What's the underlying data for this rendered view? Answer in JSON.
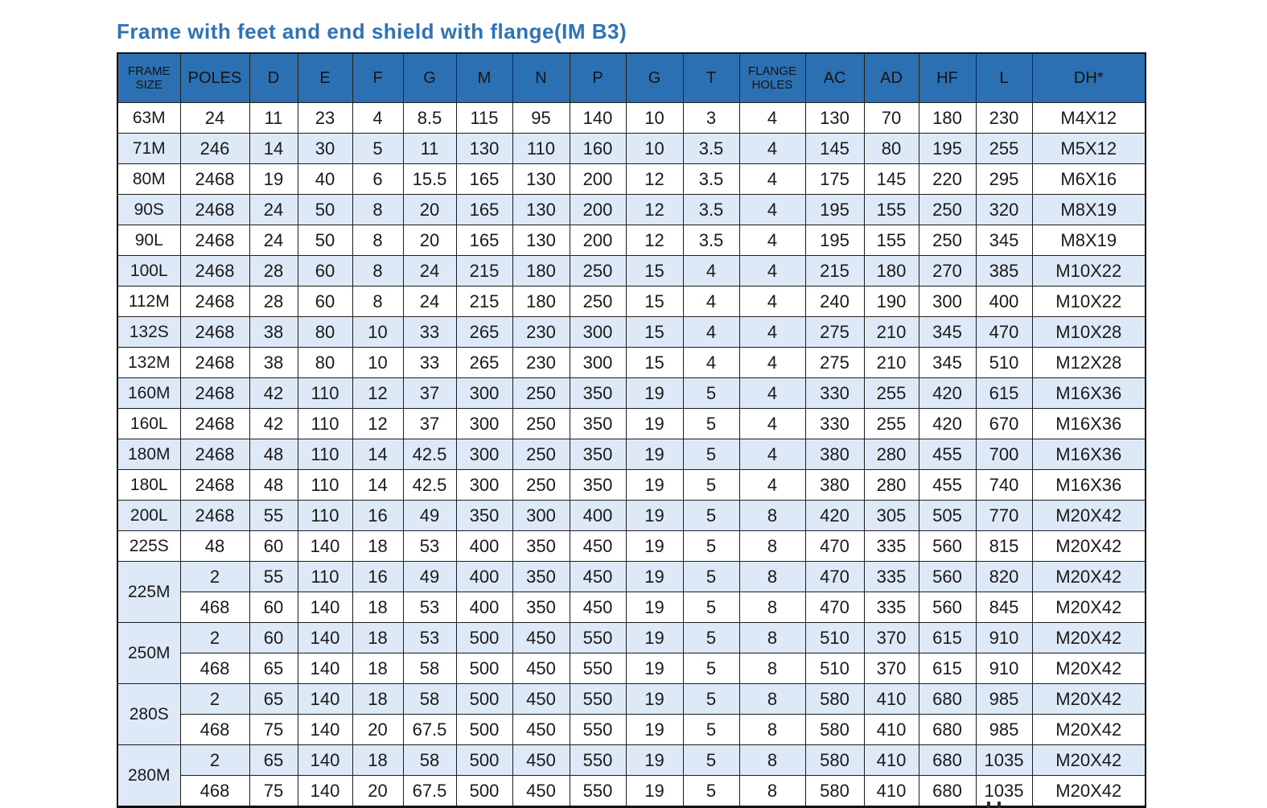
{
  "title": "Frame with feet and end shield with flange(IM B3)",
  "table": {
    "columns": [
      {
        "label": "FRAME SIZE",
        "key": "frame-size"
      },
      {
        "label": "POLES",
        "key": "poles"
      },
      {
        "label": "D",
        "key": "d"
      },
      {
        "label": "E",
        "key": "e"
      },
      {
        "label": "F",
        "key": "f"
      },
      {
        "label": "G",
        "key": "g"
      },
      {
        "label": "M",
        "key": "m"
      },
      {
        "label": "N",
        "key": "n"
      },
      {
        "label": "P",
        "key": "p"
      },
      {
        "label": "G",
        "key": "g2"
      },
      {
        "label": "T",
        "key": "t"
      },
      {
        "label": "FLANGE HOLES",
        "key": "flange-holes"
      },
      {
        "label": "AC",
        "key": "ac"
      },
      {
        "label": "AD",
        "key": "ad"
      },
      {
        "label": "HF",
        "key": "hf"
      },
      {
        "label": "L",
        "key": "l"
      },
      {
        "label": "DH*",
        "key": "dh"
      }
    ],
    "rows": [
      {
        "frame": "63M",
        "rowspan": 1,
        "frame_shade": false,
        "shade": false,
        "cells": [
          "24",
          "11",
          "23",
          "4",
          "8.5",
          "115",
          "95",
          "140",
          "10",
          "3",
          "4",
          "130",
          "70",
          "180",
          "230",
          "M4X12"
        ]
      },
      {
        "frame": "71M",
        "rowspan": 1,
        "frame_shade": true,
        "shade": true,
        "cells": [
          "246",
          "14",
          "30",
          "5",
          "11",
          "130",
          "110",
          "160",
          "10",
          "3.5",
          "4",
          "145",
          "80",
          "195",
          "255",
          "M5X12"
        ]
      },
      {
        "frame": "80M",
        "rowspan": 1,
        "frame_shade": false,
        "shade": false,
        "cells": [
          "2468",
          "19",
          "40",
          "6",
          "15.5",
          "165",
          "130",
          "200",
          "12",
          "3.5",
          "4",
          "175",
          "145",
          "220",
          "295",
          "M6X16"
        ]
      },
      {
        "frame": "90S",
        "rowspan": 1,
        "frame_shade": true,
        "shade": true,
        "cells": [
          "2468",
          "24",
          "50",
          "8",
          "20",
          "165",
          "130",
          "200",
          "12",
          "3.5",
          "4",
          "195",
          "155",
          "250",
          "320",
          "M8X19"
        ]
      },
      {
        "frame": "90L",
        "rowspan": 1,
        "frame_shade": false,
        "shade": false,
        "cells": [
          "2468",
          "24",
          "50",
          "8",
          "20",
          "165",
          "130",
          "200",
          "12",
          "3.5",
          "4",
          "195",
          "155",
          "250",
          "345",
          "M8X19"
        ]
      },
      {
        "frame": "100L",
        "rowspan": 1,
        "frame_shade": true,
        "shade": true,
        "cells": [
          "2468",
          "28",
          "60",
          "8",
          "24",
          "215",
          "180",
          "250",
          "15",
          "4",
          "4",
          "215",
          "180",
          "270",
          "385",
          "M10X22"
        ]
      },
      {
        "frame": "112M",
        "rowspan": 1,
        "frame_shade": false,
        "shade": false,
        "cells": [
          "2468",
          "28",
          "60",
          "8",
          "24",
          "215",
          "180",
          "250",
          "15",
          "4",
          "4",
          "240",
          "190",
          "300",
          "400",
          "M10X22"
        ]
      },
      {
        "frame": "132S",
        "rowspan": 1,
        "frame_shade": true,
        "shade": true,
        "cells": [
          "2468",
          "38",
          "80",
          "10",
          "33",
          "265",
          "230",
          "300",
          "15",
          "4",
          "4",
          "275",
          "210",
          "345",
          "470",
          "M10X28"
        ]
      },
      {
        "frame": "132M",
        "rowspan": 1,
        "frame_shade": false,
        "shade": false,
        "cells": [
          "2468",
          "38",
          "80",
          "10",
          "33",
          "265",
          "230",
          "300",
          "15",
          "4",
          "4",
          "275",
          "210",
          "345",
          "510",
          "M12X28"
        ]
      },
      {
        "frame": "160M",
        "rowspan": 1,
        "frame_shade": true,
        "shade": true,
        "cells": [
          "2468",
          "42",
          "110",
          "12",
          "37",
          "300",
          "250",
          "350",
          "19",
          "5",
          "4",
          "330",
          "255",
          "420",
          "615",
          "M16X36"
        ]
      },
      {
        "frame": "160L",
        "rowspan": 1,
        "frame_shade": false,
        "shade": false,
        "cells": [
          "2468",
          "42",
          "110",
          "12",
          "37",
          "300",
          "250",
          "350",
          "19",
          "5",
          "4",
          "330",
          "255",
          "420",
          "670",
          "M16X36"
        ]
      },
      {
        "frame": "180M",
        "rowspan": 1,
        "frame_shade": true,
        "shade": true,
        "cells": [
          "2468",
          "48",
          "110",
          "14",
          "42.5",
          "300",
          "250",
          "350",
          "19",
          "5",
          "4",
          "380",
          "280",
          "455",
          "700",
          "M16X36"
        ]
      },
      {
        "frame": "180L",
        "rowspan": 1,
        "frame_shade": false,
        "shade": false,
        "cells": [
          "2468",
          "48",
          "110",
          "14",
          "42.5",
          "300",
          "250",
          "350",
          "19",
          "5",
          "4",
          "380",
          "280",
          "455",
          "740",
          "M16X36"
        ]
      },
      {
        "frame": "200L",
        "rowspan": 1,
        "frame_shade": true,
        "shade": true,
        "cells": [
          "2468",
          "55",
          "110",
          "16",
          "49",
          "350",
          "300",
          "400",
          "19",
          "5",
          "8",
          "420",
          "305",
          "505",
          "770",
          "M20X42"
        ]
      },
      {
        "frame": "225S",
        "rowspan": 1,
        "frame_shade": false,
        "shade": false,
        "cells": [
          "48",
          "60",
          "140",
          "18",
          "53",
          "400",
          "350",
          "450",
          "19",
          "5",
          "8",
          "470",
          "335",
          "560",
          "815",
          "M20X42"
        ]
      },
      {
        "frame": "225M",
        "rowspan": 2,
        "frame_shade": true,
        "shade": true,
        "cells": [
          "2",
          "55",
          "110",
          "16",
          "49",
          "400",
          "350",
          "450",
          "19",
          "5",
          "8",
          "470",
          "335",
          "560",
          "820",
          "M20X42"
        ]
      },
      {
        "frame": null,
        "shade": false,
        "cells": [
          "468",
          "60",
          "140",
          "18",
          "53",
          "400",
          "350",
          "450",
          "19",
          "5",
          "8",
          "470",
          "335",
          "560",
          "845",
          "M20X42"
        ]
      },
      {
        "frame": "250M",
        "rowspan": 2,
        "frame_shade": false,
        "shade": true,
        "cells": [
          "2",
          "60",
          "140",
          "18",
          "53",
          "500",
          "450",
          "550",
          "19",
          "5",
          "8",
          "510",
          "370",
          "615",
          "910",
          "M20X42"
        ]
      },
      {
        "frame": null,
        "shade": false,
        "cells": [
          "468",
          "65",
          "140",
          "18",
          "58",
          "500",
          "450",
          "550",
          "19",
          "5",
          "8",
          "510",
          "370",
          "615",
          "910",
          "M20X42"
        ]
      },
      {
        "frame": "280S",
        "rowspan": 2,
        "frame_shade": true,
        "shade": true,
        "cells": [
          "2",
          "65",
          "140",
          "18",
          "58",
          "500",
          "450",
          "550",
          "19",
          "5",
          "8",
          "580",
          "410",
          "680",
          "985",
          "M20X42"
        ]
      },
      {
        "frame": null,
        "shade": false,
        "cells": [
          "468",
          "75",
          "140",
          "20",
          "67.5",
          "500",
          "450",
          "550",
          "19",
          "5",
          "8",
          "580",
          "410",
          "680",
          "985",
          "M20X42"
        ]
      },
      {
        "frame": "280M",
        "rowspan": 2,
        "frame_shade": false,
        "shade": true,
        "cells": [
          "2",
          "65",
          "140",
          "18",
          "58",
          "500",
          "450",
          "550",
          "19",
          "5",
          "8",
          "580",
          "410",
          "680",
          "1035",
          "M20X42"
        ]
      },
      {
        "frame": null,
        "shade": false,
        "cells": [
          "468",
          "75",
          "140",
          "20",
          "67.5",
          "500",
          "450",
          "550",
          "19",
          "5",
          "8",
          "580",
          "410",
          "680",
          "1035",
          "M20X42"
        ]
      }
    ]
  }
}
